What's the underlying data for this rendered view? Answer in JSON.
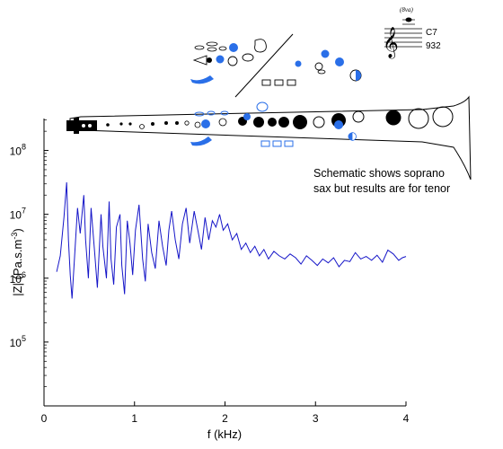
{
  "chart_data": {
    "type": "line",
    "title": "",
    "xlabel": "f (kHz)",
    "ylabel_parts": [
      "|Z| (Pa.s.m",
      "-3",
      ")"
    ],
    "xlim": [
      0,
      4
    ],
    "ylim_log10": [
      4,
      8.5
    ],
    "log_y": true,
    "x_ticks": [
      {
        "v": 0,
        "label": "0"
      },
      {
        "v": 1,
        "label": "1"
      },
      {
        "v": 2,
        "label": "2"
      },
      {
        "v": 3,
        "label": "3"
      },
      {
        "v": 4,
        "label": "4"
      }
    ],
    "y_ticks": [
      {
        "exp": 5,
        "base": "10",
        "sup": "5"
      },
      {
        "exp": 6,
        "base": "10",
        "sup": "6"
      },
      {
        "exp": 7,
        "base": "10",
        "sup": "7"
      },
      {
        "exp": 8,
        "base": "10",
        "sup": "8"
      }
    ],
    "grid": false,
    "series": [
      {
        "color": "#1515c8",
        "x": [
          0.14,
          0.18,
          0.22,
          0.25,
          0.27,
          0.29,
          0.31,
          0.34,
          0.37,
          0.4,
          0.44,
          0.46,
          0.49,
          0.52,
          0.56,
          0.59,
          0.63,
          0.65,
          0.69,
          0.72,
          0.74,
          0.77,
          0.8,
          0.84,
          0.86,
          0.89,
          0.92,
          0.95,
          0.98,
          1.01,
          1.05,
          1.09,
          1.12,
          1.15,
          1.19,
          1.23,
          1.27,
          1.31,
          1.35,
          1.38,
          1.41,
          1.45,
          1.49,
          1.53,
          1.57,
          1.61,
          1.66,
          1.7,
          1.74,
          1.78,
          1.82,
          1.86,
          1.9,
          1.94,
          1.98,
          2.03,
          2.08,
          2.13,
          2.18,
          2.23,
          2.28,
          2.33,
          2.38,
          2.43,
          2.48,
          2.54,
          2.6,
          2.66,
          2.72,
          2.78,
          2.84,
          2.9,
          2.96,
          3.02,
          3.08,
          3.14,
          3.2,
          3.26,
          3.32,
          3.38,
          3.44,
          3.5,
          3.56,
          3.62,
          3.68,
          3.74,
          3.8,
          3.86,
          3.92,
          3.96,
          4.0
        ],
        "y_log10": [
          6.1,
          6.35,
          6.95,
          7.5,
          6.6,
          6.05,
          5.68,
          6.4,
          7.1,
          6.7,
          7.3,
          6.6,
          6.0,
          7.1,
          6.4,
          5.85,
          7.0,
          6.5,
          6.0,
          7.2,
          6.3,
          5.9,
          6.8,
          7.0,
          6.2,
          5.75,
          6.9,
          6.55,
          6.05,
          6.75,
          7.15,
          6.3,
          5.95,
          6.85,
          6.4,
          6.15,
          6.9,
          6.5,
          6.2,
          6.75,
          7.05,
          6.6,
          6.3,
          6.85,
          7.1,
          6.55,
          7.05,
          6.75,
          6.45,
          6.95,
          6.6,
          6.9,
          6.8,
          7.0,
          6.75,
          6.85,
          6.6,
          6.7,
          6.45,
          6.55,
          6.4,
          6.5,
          6.35,
          6.45,
          6.3,
          6.42,
          6.35,
          6.3,
          6.38,
          6.32,
          6.22,
          6.35,
          6.28,
          6.2,
          6.3,
          6.24,
          6.32,
          6.18,
          6.28,
          6.26,
          6.4,
          6.3,
          6.34,
          6.28,
          6.36,
          6.25,
          6.44,
          6.38,
          6.28,
          6.32,
          6.34
        ]
      }
    ]
  },
  "annotation": {
    "lines": [
      "Schematic shows soprano",
      "sax but results are for tenor"
    ]
  },
  "notation": {
    "ottava": "(8va)",
    "note_name": "C7",
    "frequency": "932"
  },
  "colors": {
    "axis": "#000000",
    "curve": "#1515c8",
    "key_open_blue": "#2a6fe8",
    "key_closed_black": "#000000"
  }
}
